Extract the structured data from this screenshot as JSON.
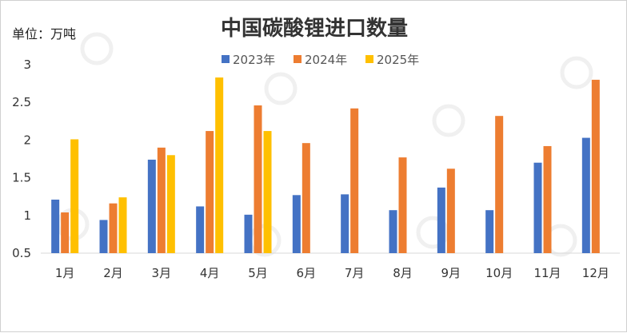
{
  "chart_data": {
    "type": "bar",
    "title": "中国碳酸锂进口数量",
    "unit_label": "单位：万吨",
    "categories": [
      "1月",
      "2月",
      "3月",
      "4月",
      "5月",
      "6月",
      "7月",
      "8月",
      "9月",
      "10月",
      "11月",
      "12月"
    ],
    "series": [
      {
        "name": "2023年",
        "color": "#4472C4",
        "values": [
          1.21,
          0.94,
          1.74,
          1.12,
          1.01,
          1.27,
          1.28,
          1.07,
          1.37,
          1.07,
          1.7,
          2.03
        ]
      },
      {
        "name": "2024年",
        "color": "#ED7D31",
        "values": [
          1.04,
          1.16,
          1.9,
          2.12,
          2.46,
          1.96,
          2.42,
          1.77,
          1.62,
          2.32,
          1.92,
          2.8
        ]
      },
      {
        "name": "2025年",
        "color": "#FFC000",
        "values": [
          2.01,
          1.24,
          1.8,
          2.83,
          2.12,
          null,
          null,
          null,
          null,
          null,
          null,
          null
        ]
      }
    ],
    "ylim": [
      0.5,
      3
    ],
    "yticks": [
      "0.5",
      "1",
      "1.5",
      "2",
      "2.5",
      "3"
    ],
    "grid": false,
    "legend_position": "top-center"
  }
}
